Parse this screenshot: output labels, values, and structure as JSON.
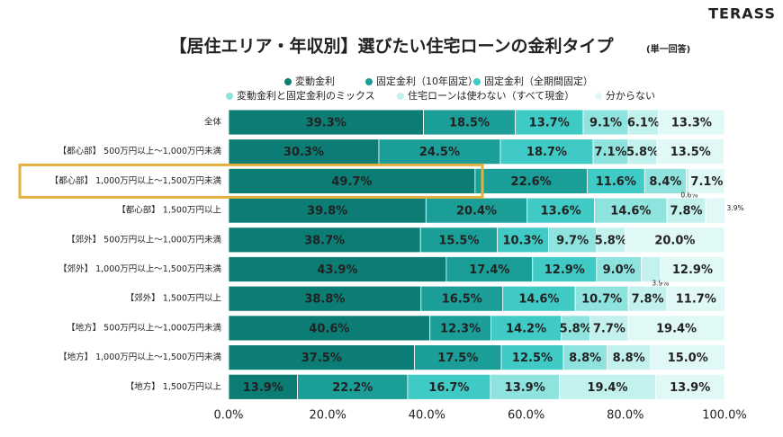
{
  "chart_data": {
    "type": "stacked-barh",
    "title": "【居住エリア・年収別】選びたい住宅ローンの金利タイプ",
    "subtitle": "(単一回答)",
    "brand": "TERASS",
    "categories": [
      "全体",
      "【都心部】 500万円以上～1,000万円未満",
      "【都心部】 1,000万円以上～1,500万円未満",
      "【都心部】 1,500万円以上",
      "【郊外】 500万円以上～1,000万円未満",
      "【郊外】 1,000万円以上～1,500万円未満",
      "【郊外】 1,500万円以上",
      "【地方】 500万円以上～1,000万円未満",
      "【地方】 1,000万円以上～1,500万円未満",
      "【地方】 1,500万円以上"
    ],
    "series": [
      {
        "name": "変動金利",
        "color": "#0b7d74",
        "values": [
          39.3,
          30.3,
          49.7,
          39.8,
          38.7,
          43.9,
          38.8,
          40.6,
          37.5,
          13.9
        ],
        "value_labels": [
          "39.3%",
          "30.3%",
          "49.7%",
          "39.8%",
          "38.7%",
          "43.9%",
          "38.8%",
          "40.6%",
          "37.5%",
          "13.9%"
        ]
      },
      {
        "name": "固定金利（10年固定）",
        "color": "#1b9e98",
        "values": [
          18.5,
          24.5,
          22.6,
          20.4,
          15.5,
          17.4,
          16.5,
          12.3,
          17.5,
          22.2
        ],
        "value_labels": [
          "18.5%",
          "24.5%",
          "22.6%",
          "20.4%",
          "15.5%",
          "17.4%",
          "16.5%",
          "12.3%",
          "17.5%",
          "22.2%"
        ]
      },
      {
        "name": "固定金利（全期間固定）",
        "color": "#3fcac6",
        "values": [
          13.7,
          18.7,
          11.6,
          13.6,
          10.3,
          12.9,
          14.6,
          14.2,
          12.5,
          16.7
        ],
        "value_labels": [
          "13.7%",
          "18.7%",
          "11.6%",
          "13.6%",
          "10.3%",
          "12.9%",
          "14.6%",
          "14.2%",
          "12.5%",
          "16.7%"
        ]
      },
      {
        "name": "変動金利と固定金利のミックス",
        "color": "#8fe3df",
        "values": [
          9.1,
          7.1,
          8.4,
          14.6,
          9.7,
          9.0,
          10.7,
          5.8,
          8.8,
          13.9
        ],
        "value_labels": [
          "9.1%",
          "7.1%",
          "8.4%",
          "14.6%",
          "9.7%",
          "9.0%",
          "10.7%",
          "5.8%",
          "8.8%",
          "13.9%"
        ]
      },
      {
        "name": "住宅ローンは使わない（すべて現金）",
        "color": "#c3f1ee",
        "values": [
          6.1,
          5.8,
          0.6,
          7.8,
          5.8,
          3.9,
          7.8,
          7.7,
          8.8,
          19.4
        ],
        "value_labels": [
          "6.1%",
          "5.8%",
          "0.6%",
          "7.8%",
          "5.8%",
          "3.9%",
          "7.8%",
          "7.7%",
          "8.8%",
          "19.4%"
        ]
      },
      {
        "name": "分からない",
        "color": "#e0f8f6",
        "values": [
          13.3,
          13.5,
          7.1,
          3.9,
          20.0,
          12.9,
          11.7,
          19.4,
          15.0,
          13.9
        ],
        "value_labels": [
          "13.3%",
          "13.5%",
          "7.1%",
          "3.9%",
          "20.0%",
          "12.9%",
          "11.7%",
          "19.4%",
          "15.0%",
          "13.9%"
        ]
      }
    ],
    "xlim": [
      0,
      100
    ],
    "xticks": [
      {
        "value": 0,
        "label": "0.0%"
      },
      {
        "value": 20,
        "label": "20.0%"
      },
      {
        "value": 40,
        "label": "40.0%"
      },
      {
        "value": 60,
        "label": "60.0%"
      },
      {
        "value": 80,
        "label": "80.0%"
      },
      {
        "value": 100,
        "label": "100.0%"
      }
    ]
  }
}
